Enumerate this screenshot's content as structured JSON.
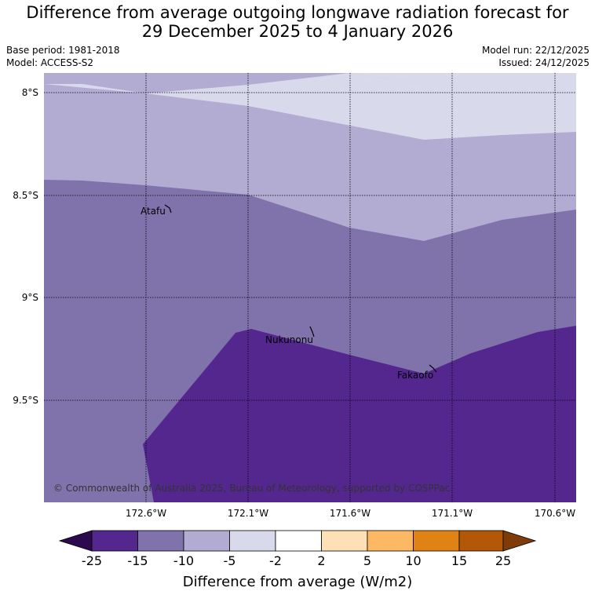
{
  "title_line1": "Difference from average outgoing longwave radiation forecast for",
  "title_line2": "29 December 2025 to 4 January 2026",
  "base_period": "Base period: 1981-2018",
  "model": "Model: ACCESS-S2",
  "model_run": "Model run: 22/12/2025",
  "issued": "Issued: 24/12/2025",
  "lat_labels": [
    "8°S",
    "8.5°S",
    "9°S",
    "9.5°S"
  ],
  "lon_labels": [
    "172.6°W",
    "172.1°W",
    "171.6°W",
    "171.1°W",
    "170.6°W"
  ],
  "places": [
    "Atafu",
    "Nukunonu",
    "Fakaofo"
  ],
  "copyright": "© Commonwealth of Australia 2025, Bureau of Meteorology, supported by COSPPac",
  "colorbar": {
    "title": "Difference from average (W/m2)",
    "ticks": [
      "-25",
      "-15",
      "-10",
      "-5",
      "-2",
      "2",
      "5",
      "10",
      "15",
      "25"
    ],
    "colors": [
      "#2d0a4e",
      "#54278f",
      "#8073ac",
      "#b2abd2",
      "#d8daeb",
      "#ffffff",
      "#fee0b6",
      "#fdb863",
      "#e08214",
      "#b35806",
      "#7f3b08"
    ]
  }
}
